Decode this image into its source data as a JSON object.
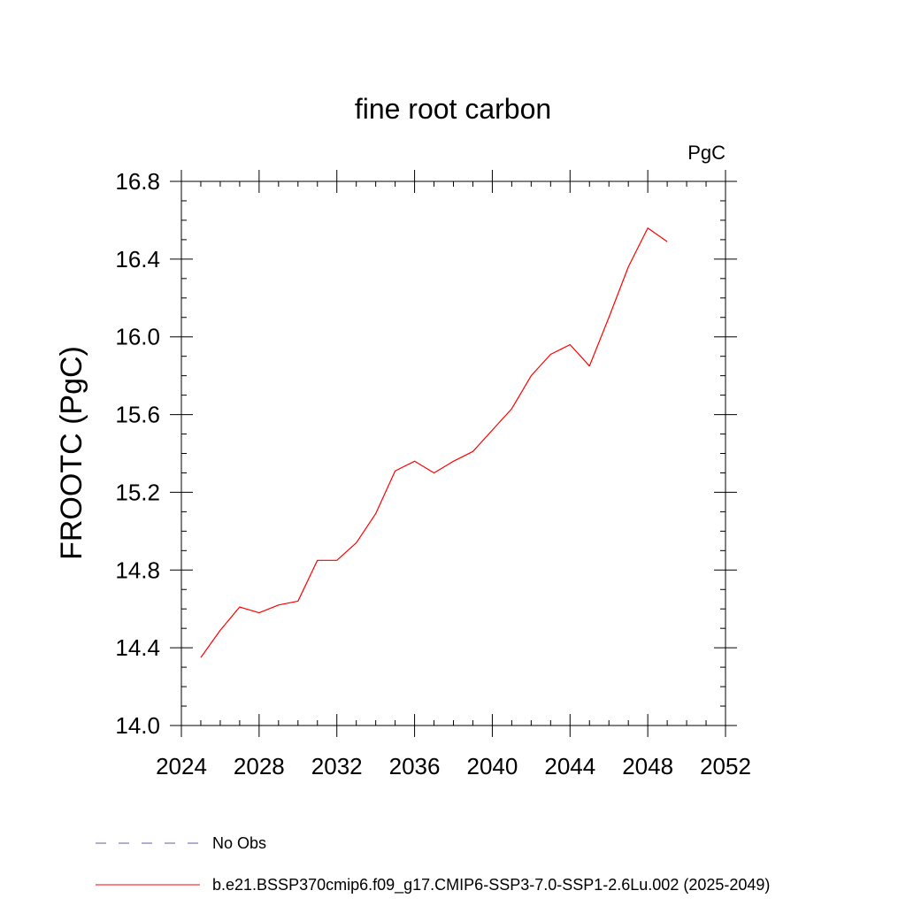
{
  "chart_data": {
    "type": "line",
    "title": "fine root carbon",
    "units_label": "PgC",
    "xlabel": "",
    "ylabel": "FROOTC  (PgC)",
    "xlim": [
      2024,
      2052
    ],
    "ylim": [
      14.0,
      16.8
    ],
    "x_ticks": [
      "2024",
      "2028",
      "2032",
      "2036",
      "2040",
      "2044",
      "2048",
      "2052"
    ],
    "y_ticks": [
      "14.0",
      "14.4",
      "14.8",
      "15.2",
      "15.6",
      "16.0",
      "16.4",
      "16.8"
    ],
    "x": [
      2025,
      2026,
      2027,
      2028,
      2029,
      2030,
      2031,
      2032,
      2033,
      2034,
      2035,
      2036,
      2037,
      2038,
      2039,
      2040,
      2041,
      2042,
      2043,
      2044,
      2045,
      2046,
      2047,
      2048,
      2049
    ],
    "series": [
      {
        "name": "b.e21.BSSP370cmip6.f09_g17.CMIP6-SSP3-7.0-SSP1-2.6Lu.002 (2025-2049)",
        "color": "#ff0000",
        "values": [
          14.35,
          14.49,
          14.61,
          14.58,
          14.62,
          14.64,
          14.85,
          14.85,
          14.94,
          15.09,
          15.31,
          15.36,
          15.3,
          15.36,
          15.41,
          15.52,
          15.63,
          15.8,
          15.91,
          15.96,
          15.85,
          16.1,
          16.36,
          16.56,
          16.49
        ]
      }
    ],
    "legend": [
      {
        "label": "No Obs",
        "style": "dashed",
        "color": "#6b5aa8"
      },
      {
        "label": "b.e21.BSSP370cmip6.f09_g17.CMIP6-SSP3-7.0-SSP1-2.6Lu.002 (2025-2049)",
        "style": "solid",
        "color": "#ff0000"
      }
    ],
    "legend_position": "bottom",
    "grid": false
  }
}
